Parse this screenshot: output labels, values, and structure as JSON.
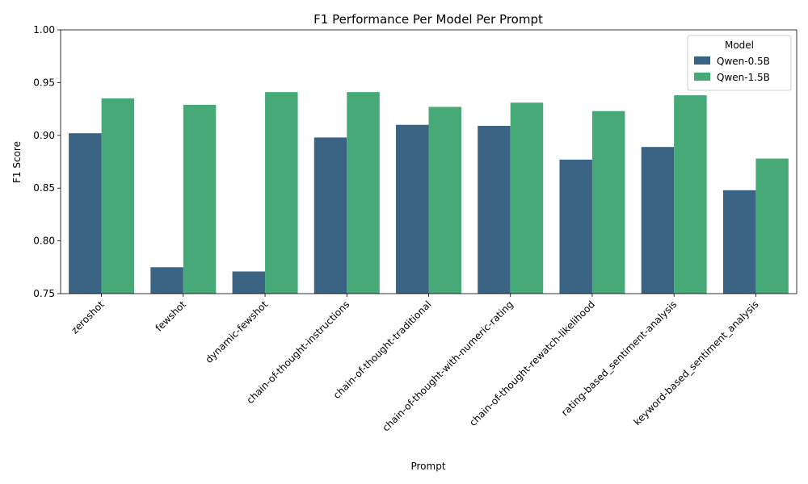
{
  "chart_data": {
    "type": "bar",
    "title": "F1 Performance Per Model Per Prompt",
    "xlabel": "Prompt",
    "ylabel": "F1 Score",
    "ylim": [
      0.75,
      1.0
    ],
    "yticks": [
      "0.75",
      "0.80",
      "0.85",
      "0.90",
      "0.95",
      "1.00"
    ],
    "grid": false,
    "legend": {
      "title": "Model",
      "placement": "top-right"
    },
    "categories": [
      "zeroshot",
      "fewshot",
      "dynamic-fewshot",
      "chain-of-thought-instructions",
      "chain-of-thought-traditional",
      "chain-of-thought-with-numeric-rating",
      "chain-of-thought-rewatch-likelihood",
      "rating-based_sentiment-analysis",
      "keyword-based_sentiment_analysis"
    ],
    "series": [
      {
        "name": "Qwen-0.5B",
        "color": "#3b6383",
        "values": [
          0.902,
          0.775,
          0.771,
          0.898,
          0.91,
          0.909,
          0.877,
          0.889,
          0.848
        ]
      },
      {
        "name": "Qwen-1.5B",
        "color": "#46a977",
        "values": [
          0.935,
          0.929,
          0.941,
          0.941,
          0.927,
          0.931,
          0.923,
          0.938,
          0.878
        ]
      }
    ]
  }
}
